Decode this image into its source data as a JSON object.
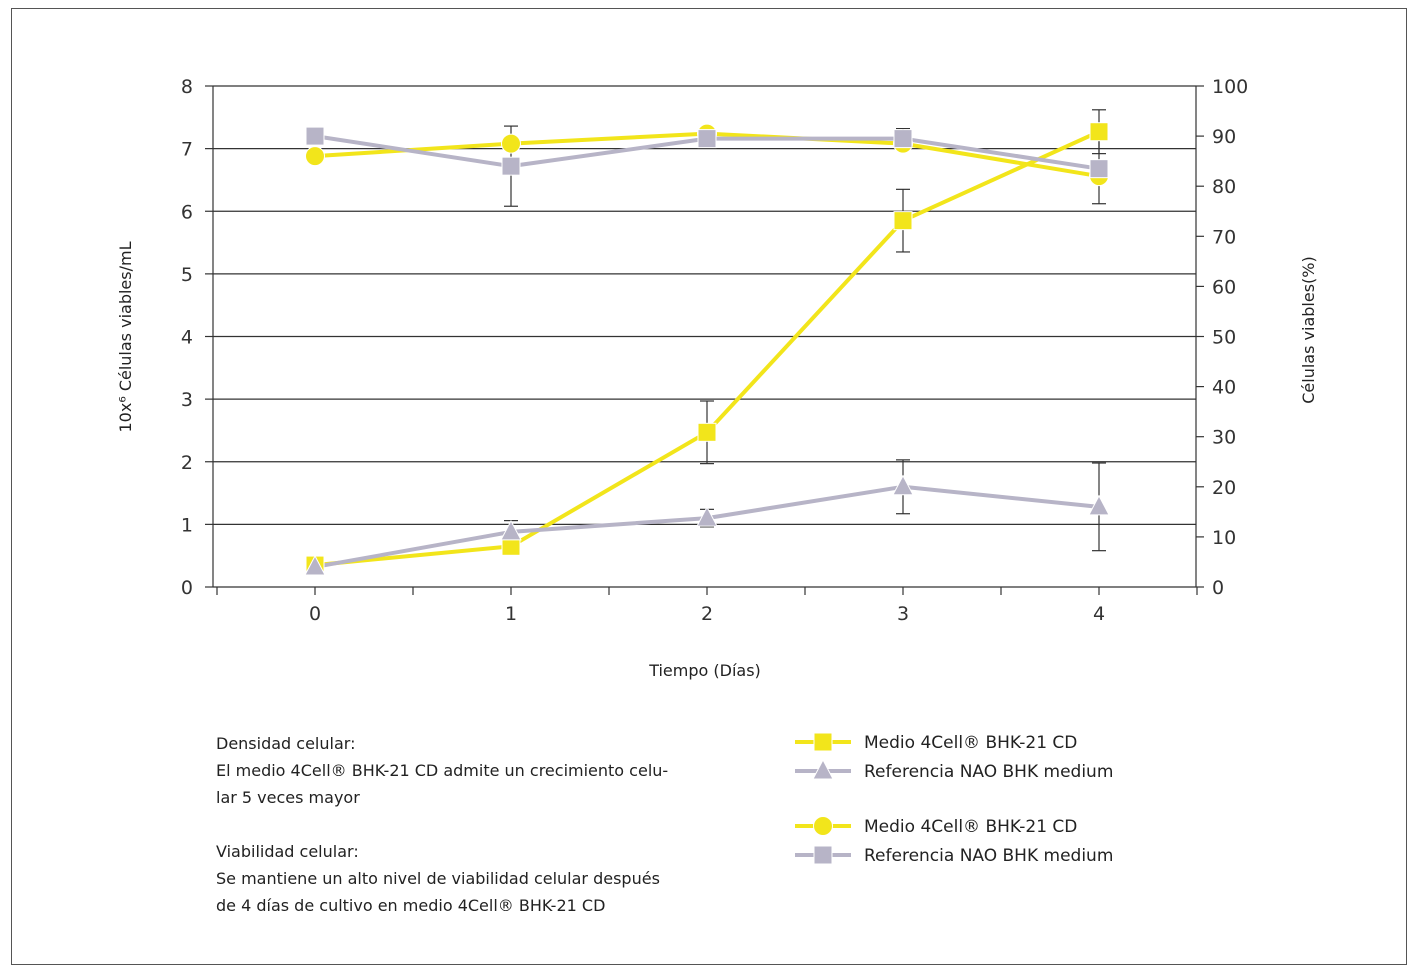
{
  "chart_data": {
    "type": "line",
    "xlabel": "Tiempo (Días)",
    "ylabel_left": "10x⁶ Células viables/mL",
    "ylabel_right": "Células viables(%)",
    "x": [
      0,
      1,
      2,
      3,
      4
    ],
    "x_ticks": [
      "0",
      "1",
      "2",
      "3",
      "4"
    ],
    "y_left_range": [
      0,
      8
    ],
    "y_left_ticks": [
      "0",
      "1",
      "2",
      "3",
      "4",
      "5",
      "6",
      "7",
      "8"
    ],
    "y_right_range": [
      0,
      100
    ],
    "y_right_ticks": [
      "0",
      "10",
      "20",
      "30",
      "40",
      "50",
      "60",
      "70",
      "80",
      "90",
      "100"
    ],
    "grid": "horizontal",
    "series": [
      {
        "name": "Medio 4Cell® BHK-21 CD",
        "metric": "density",
        "axis": "left",
        "marker": "square",
        "color": "#f2e51b",
        "values": [
          0.35,
          0.65,
          2.47,
          5.85,
          7.27
        ],
        "error": [
          null,
          null,
          0.5,
          0.5,
          0.35
        ]
      },
      {
        "name": "Referencia NAO BHK medium",
        "metric": "density",
        "axis": "left",
        "marker": "triangle",
        "color": "#b7b4c7",
        "values": [
          0.32,
          0.88,
          1.1,
          1.6,
          1.28
        ],
        "error": [
          null,
          0.18,
          0.14,
          0.43,
          0.7
        ]
      },
      {
        "name": "Medio 4Cell® BHK-21 CD",
        "metric": "viability",
        "axis": "right",
        "marker": "circle",
        "color": "#f2e51b",
        "values": [
          86,
          88.5,
          90.5,
          88.5,
          82
        ],
        "error": [
          null,
          null,
          null,
          null,
          null
        ]
      },
      {
        "name": "Referencia NAO BHK medium",
        "metric": "viability",
        "axis": "right",
        "marker": "square",
        "color": "#b7b4c7",
        "values": [
          90,
          84,
          89.5,
          89.5,
          83.5
        ],
        "error": [
          null,
          8,
          null,
          2,
          7
        ]
      }
    ],
    "legend_placement": "bottom-right"
  },
  "notes": {
    "density_title": "Densidad celular:",
    "density_text_1": "El medio 4Cell® BHK-21 CD admite un crecimiento celu-",
    "density_text_2": "lar 5 veces mayor",
    "viability_title": "Viabilidad celular:",
    "viability_text_1": "Se mantiene un alto nivel de viabilidad celular después",
    "viability_text_2": "de 4 días de cultivo en medio 4Cell® BHK-21 CD"
  },
  "colors": {
    "yellow": "#f2e51b",
    "gray": "#b7b4c7",
    "axis": "#333333"
  }
}
